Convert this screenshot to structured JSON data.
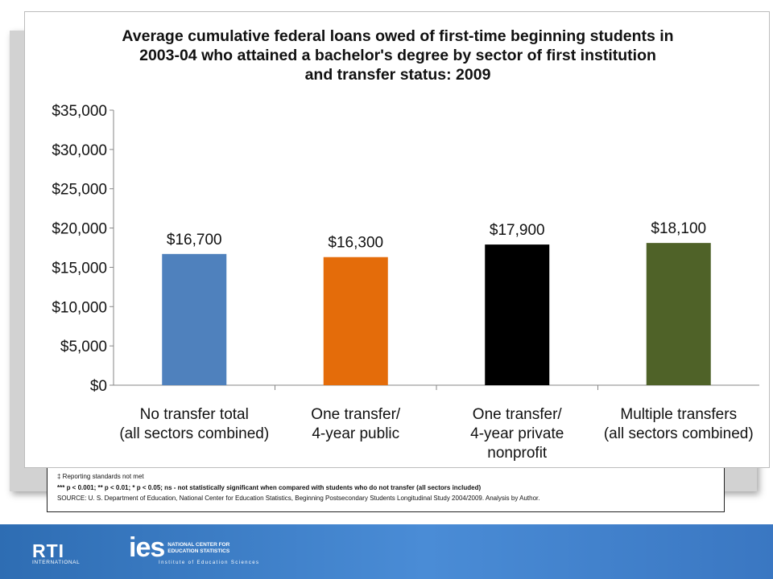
{
  "chart_data": {
    "type": "bar",
    "title_lines": [
      "Average cumulative federal loans owed of first-time beginning students in",
      "2003-04 who attained a bachelor's degree by sector of first institution",
      "and transfer status: 2009"
    ],
    "categories": [
      [
        "No transfer total",
        "(all sectors combined)"
      ],
      [
        "One transfer/",
        "4-year public"
      ],
      [
        "One transfer/",
        "4-year private",
        "nonprofit"
      ],
      [
        "Multiple transfers",
        "(all sectors combined)"
      ]
    ],
    "values": [
      16700,
      16300,
      17900,
      18100
    ],
    "data_labels": [
      "$16,700",
      "$16,300",
      "$17,900",
      "$18,100"
    ],
    "colors": [
      "#4f81bd",
      "#e46c0a",
      "#000000",
      "#4f6228"
    ],
    "ylim": [
      0,
      35000
    ],
    "yticks": [
      0,
      5000,
      10000,
      15000,
      20000,
      25000,
      30000,
      35000
    ],
    "ytick_labels": [
      "$0",
      "$5,000",
      "$10,000",
      "$15,000",
      "$20,000",
      "$25,000",
      "$30,000",
      "$35,000"
    ],
    "grid": false,
    "legend": "none"
  },
  "notes": [
    "‡ Reporting standards not met",
    "*** p < 0.001; ** p < 0.01; * p < 0.05; ns - not statistically significant when compared with students who do not transfer (all sectors included)",
    "SOURCE: U. S. Department of Education, National Center for Education Statistics, Beginning Postsecondary Students Longitudinal Study 2004/2009.  Analysis by Author."
  ],
  "footer": {
    "rti_main": "RTI",
    "rti_sub": "INTERNATIONAL",
    "ies_main": "ies",
    "ies_text_1": "NATIONAL CENTER FOR",
    "ies_text_2": "EDUCATION STATISTICS",
    "ies_sub": "Institute of Education Sciences"
  }
}
